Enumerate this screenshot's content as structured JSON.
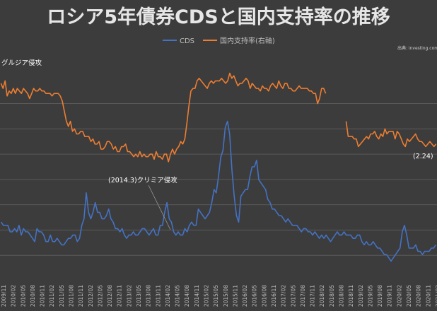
{
  "chart_data": {
    "type": "line",
    "title": "ロシア5年債券CDSと国内支持率の推移",
    "source": "出典: investing.com",
    "series": [
      {
        "name": "CDS",
        "color": "#4472c4",
        "values": [
          18,
          17,
          17,
          17,
          15,
          15,
          16,
          15,
          17,
          14,
          16,
          15,
          15,
          14,
          13,
          12,
          16,
          15,
          15,
          14,
          12,
          12,
          14,
          12,
          12,
          13,
          12,
          11,
          11,
          12,
          13,
          13,
          14,
          14,
          12,
          13,
          17,
          19,
          27,
          21,
          19,
          21,
          24,
          21,
          21,
          19,
          19,
          20,
          22,
          19,
          18,
          16,
          16,
          15,
          16,
          14,
          13,
          14,
          14,
          15,
          14,
          14,
          15,
          16,
          16,
          15,
          14,
          15,
          16,
          14,
          14,
          17,
          17,
          21,
          24,
          19,
          18,
          15,
          14,
          15,
          14,
          14,
          16,
          15,
          17,
          18,
          17,
          17,
          22,
          21,
          20,
          19,
          20,
          21,
          24,
          28,
          27,
          32,
          38,
          40,
          47,
          49,
          45,
          34,
          26,
          20,
          18,
          26,
          27,
          28,
          28,
          32,
          35,
          35,
          37,
          31,
          30,
          29,
          28,
          25,
          24,
          22,
          22,
          21,
          20,
          20,
          19,
          18,
          19,
          18,
          17,
          17,
          17,
          16,
          15,
          16,
          16,
          15,
          15,
          14,
          15,
          14,
          13,
          14,
          13,
          14,
          13,
          12,
          13,
          14,
          15,
          14,
          14,
          15,
          14,
          14,
          14,
          13,
          13,
          14,
          14,
          12,
          11,
          12,
          11,
          11,
          12,
          11,
          10,
          10,
          9,
          8,
          8,
          7,
          6,
          7,
          8,
          9,
          10,
          15,
          17,
          14,
          10,
          10,
          10,
          11,
          9,
          9,
          8,
          9,
          9,
          9,
          10,
          10,
          11
        ]
      },
      {
        "name": "国内支持率(右軸)",
        "color": "#ed7d31",
        "values": [
          88,
          86,
          89,
          83,
          85,
          84,
          86,
          84,
          86,
          85,
          84,
          86,
          85,
          84,
          82,
          84,
          86,
          85,
          85,
          86,
          85,
          85,
          84,
          84,
          84,
          83,
          84,
          84,
          84,
          83,
          81,
          77,
          73,
          71,
          73,
          69,
          70,
          68,
          68,
          69,
          69,
          67,
          67,
          67,
          65,
          66,
          64,
          64,
          65,
          62,
          62,
          63,
          65,
          65,
          64,
          62,
          63,
          61,
          61,
          63,
          63,
          64,
          61,
          61,
          60,
          59,
          60,
          59,
          61,
          59,
          60,
          59,
          59,
          60,
          60,
          58,
          61,
          59,
          59,
          58,
          60,
          60,
          57,
          60,
          62,
          60,
          62,
          63,
          65,
          64,
          66,
          72,
          79,
          85,
          86,
          86,
          89,
          90,
          89,
          88,
          87,
          86,
          88,
          89,
          88,
          89,
          89,
          89,
          90,
          89,
          88,
          89,
          92,
          90,
          91,
          89,
          87,
          88,
          88,
          89,
          90,
          89,
          86,
          88,
          87,
          86,
          86,
          85,
          87,
          86,
          86,
          85,
          87,
          88,
          87,
          86,
          89,
          87,
          86,
          88,
          88,
          86,
          86,
          85,
          85,
          86,
          87,
          86,
          86,
          86,
          86,
          85,
          85,
          84,
          84,
          80,
          82,
          86,
          86,
          84,
          null,
          null,
          null,
          null,
          null,
          null,
          null,
          null,
          null,
          73,
          67,
          67,
          67,
          66,
          66,
          63,
          64,
          65,
          66,
          67,
          66,
          68,
          68,
          69,
          67,
          66,
          68,
          67,
          70,
          68,
          69,
          69,
          69,
          66,
          69,
          68,
          66,
          64,
          63,
          66,
          65,
          66,
          67,
          68,
          66,
          65,
          65,
          64,
          63,
          64,
          65,
          64,
          63,
          64
        ]
      }
    ],
    "x_tick_labels": [
      "2009/11",
      "2010/02",
      "2010/05",
      "2010/08",
      "2010/11",
      "2011/02",
      "2011/05",
      "2011/08",
      "2011/11",
      "2012/02",
      "2012/05",
      "2012/08",
      "2012/11",
      "2013/02",
      "2013/05",
      "2013/08",
      "2013/11",
      "2014/02",
      "2014/05",
      "2014/08",
      "2014/11",
      "2015/02",
      "2015/05",
      "2015/08",
      "2015/11",
      "2016/02",
      "2016/05",
      "2016/08",
      "2016/11",
      "2017/02",
      "2017/05",
      "2017/08",
      "2017/11",
      "2018/02",
      "2018/05",
      "2018/08",
      "2018/11",
      "2019/02",
      "2019/05",
      "2019/08",
      "2019/11",
      "2020/02",
      "2020/05",
      "2020/08",
      "2020/11",
      "2021/02"
    ],
    "left_ylim": [
      0,
      70
    ],
    "right_ylim": [
      10,
      100
    ],
    "grid": true,
    "legend_position": "top-center",
    "annotations": {
      "crimea": "(2014.3)クリミア侵攻",
      "georgia": "グルジア侵攻",
      "last_value": "(2.24)"
    }
  }
}
